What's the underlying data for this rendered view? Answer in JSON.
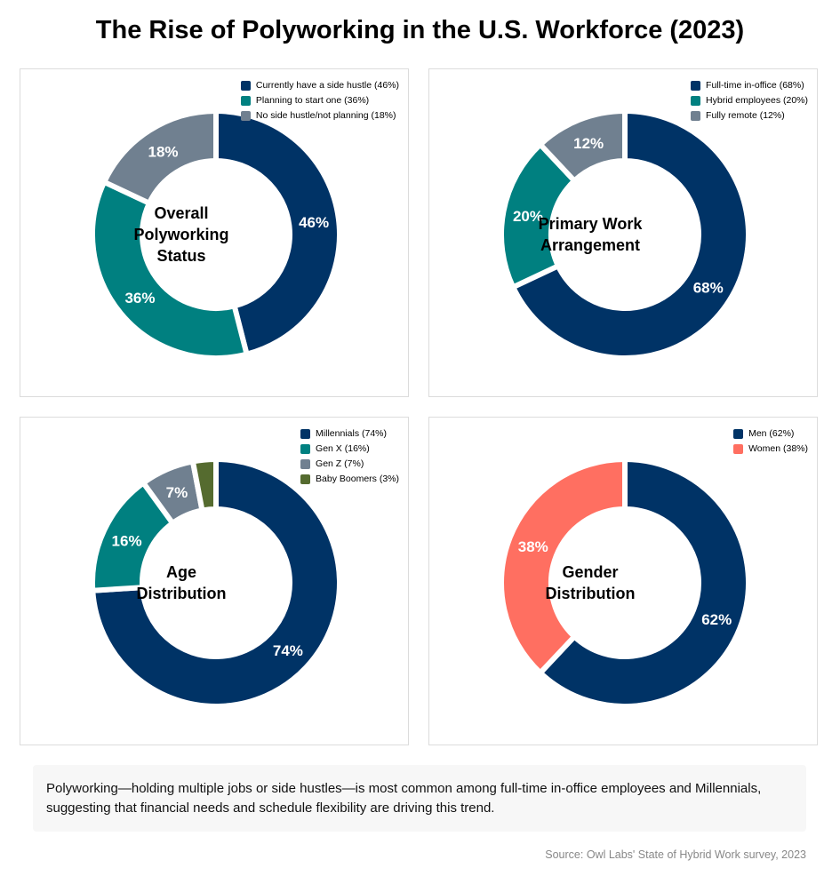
{
  "title": "The Rise of Polyworking in the U.S. Workforce (2023)",
  "colors": {
    "navy": "#003366",
    "teal": "#008080",
    "gray": "#708090",
    "olive": "#556B2F",
    "coral": "#FF6F61"
  },
  "chart_data": [
    {
      "type": "pie",
      "center_label": "Overall\nPolyworking\nStatus",
      "categories": [
        "Currently have a side hustle",
        "Planning to start one",
        "No side hustle/not planning"
      ],
      "legend": [
        "Currently have a side hustle (46%)",
        "Planning to start one (36%)",
        "No side hustle/not planning (18%)"
      ],
      "values": [
        46,
        36,
        18
      ],
      "data_labels": [
        "46%",
        "36%",
        "18%"
      ],
      "colors": [
        "#003366",
        "#008080",
        "#708090"
      ]
    },
    {
      "type": "pie",
      "center_label": "Primary Work\nArrangement",
      "categories": [
        "Full-time in-office",
        "Hybrid employees",
        "Fully remote"
      ],
      "legend": [
        "Full-time in-office (68%)",
        "Hybrid employees (20%)",
        "Fully remote (12%)"
      ],
      "values": [
        68,
        20,
        12
      ],
      "data_labels": [
        "68%",
        "20%",
        "12%"
      ],
      "colors": [
        "#003366",
        "#008080",
        "#708090"
      ]
    },
    {
      "type": "pie",
      "center_label": "Age\nDistribution",
      "categories": [
        "Millennials",
        "Gen X",
        "Gen Z",
        "Baby Boomers"
      ],
      "legend": [
        "Millennials (74%)",
        "Gen X (16%)",
        "Gen Z (7%)",
        "Baby Boomers (3%)"
      ],
      "values": [
        74,
        16,
        7,
        3
      ],
      "data_labels": [
        "74%",
        "16%",
        "7%",
        ""
      ],
      "colors": [
        "#003366",
        "#008080",
        "#708090",
        "#556B2F"
      ]
    },
    {
      "type": "pie",
      "center_label": "Gender\nDistribution",
      "categories": [
        "Men",
        "Women"
      ],
      "legend": [
        "Men (62%)",
        "Women (38%)"
      ],
      "values": [
        62,
        38
      ],
      "data_labels": [
        "62%",
        "38%"
      ],
      "colors": [
        "#003366",
        "#FF6F61"
      ]
    }
  ],
  "note": "Polyworking—holding multiple jobs or side hustles—is most common among full-time in-office employees and Millennials, suggesting that financial needs and schedule flexibility are driving this trend.",
  "source": "Source: Owl Labs' State of Hybrid Work survey, 2023"
}
